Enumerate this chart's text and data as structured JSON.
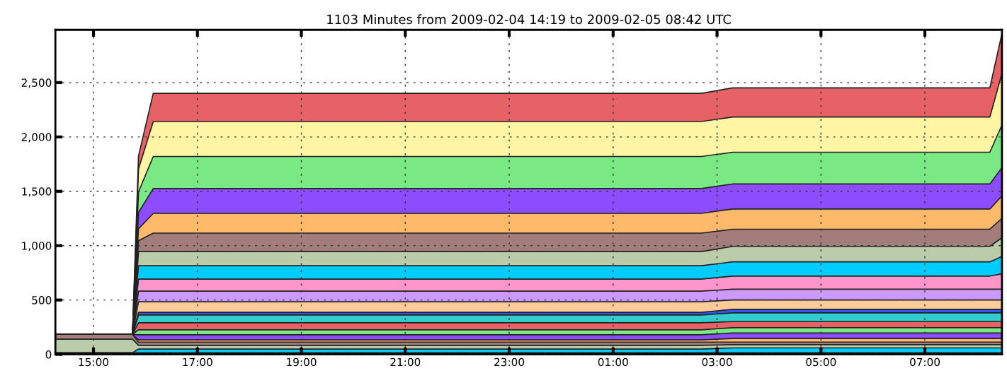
{
  "chart_data": {
    "type": "area",
    "stacked": true,
    "title": "1103 Minutes from 2009-02-04 14:19 to 2009-02-05 08:42 UTC",
    "x": [
      "2009-02-04T14:16",
      "2009-02-04T15:45",
      "2009-02-04T15:52",
      "2009-02-04T16:09",
      "2009-02-05T02:42",
      "2009-02-05T03:18",
      "2009-02-05T08:15",
      "2009-02-05T08:29"
    ],
    "series": [
      {
        "color": "#333355",
        "values": [
          14,
          14,
          14,
          14,
          14,
          14,
          14,
          14
        ]
      },
      {
        "color": "#00ccff",
        "values": [
          0,
          0,
          35,
          35,
          35,
          45,
          45,
          45
        ]
      },
      {
        "color": "#bbccaa",
        "values": [
          126,
          126,
          34,
          34,
          34,
          30,
          30,
          30
        ]
      },
      {
        "color": "#a37c7c",
        "values": [
          44,
          44,
          30,
          30,
          30,
          24,
          24,
          24
        ]
      },
      {
        "color": "#ffb96b",
        "values": [
          0,
          0,
          20,
          20,
          20,
          33,
          33,
          33
        ]
      },
      {
        "color": "#8d4dff",
        "values": [
          0,
          0,
          47,
          47,
          47,
          50,
          50,
          50
        ]
      },
      {
        "color": "#7ae883",
        "values": [
          0,
          0,
          46,
          46,
          46,
          49,
          49,
          49
        ]
      },
      {
        "color": "#e66266",
        "values": [
          0,
          0,
          65,
          65,
          65,
          56,
          56,
          56
        ]
      },
      {
        "color": "#33cccc",
        "values": [
          0,
          0,
          71,
          71,
          71,
          81,
          81,
          81
        ]
      },
      {
        "color": "#3355ff",
        "values": [
          0,
          0,
          24,
          24,
          24,
          32,
          32,
          32
        ]
      },
      {
        "color": "#ffcc99",
        "values": [
          0,
          0,
          98,
          98,
          98,
          86,
          86,
          86
        ]
      },
      {
        "color": "#cc99ff",
        "values": [
          0,
          0,
          97,
          97,
          97,
          99,
          99,
          99
        ]
      },
      {
        "color": "#ff96cb",
        "values": [
          0,
          0,
          111,
          111,
          111,
          121,
          121,
          141
        ]
      },
      {
        "color": "#00ccff",
        "values": [
          0,
          0,
          123,
          123,
          123,
          131,
          131,
          161
        ]
      },
      {
        "color": "#bbccaa",
        "values": [
          0,
          0,
          130,
          130,
          130,
          142,
          142,
          172
        ]
      },
      {
        "color": "#a37c7c",
        "values": [
          0,
          0,
          100,
          170,
          170,
          158,
          158,
          178
        ]
      },
      {
        "color": "#ffb96b",
        "values": [
          0,
          0,
          110,
          182,
          182,
          186,
          186,
          206
        ]
      },
      {
        "color": "#8d4dff",
        "values": [
          0,
          0,
          150,
          228,
          228,
          230,
          230,
          260
        ]
      },
      {
        "color": "#7ae883",
        "values": [
          0,
          0,
          190,
          295,
          295,
          292,
          292,
          392
        ]
      },
      {
        "color": "#fff5a5",
        "values": [
          0,
          0,
          210,
          322,
          322,
          324,
          324,
          474
        ]
      },
      {
        "color": "#e66266",
        "values": [
          0,
          0,
          120,
          259,
          259,
          268,
          268,
          368
        ]
      }
    ],
    "xlim": [
      "2009-02-04T14:16",
      "2009-02-05T08:29"
    ],
    "xticks": [
      {
        "value": "2009-02-04T15:00",
        "label": "15:00"
      },
      {
        "value": "2009-02-04T17:00",
        "label": "17:00"
      },
      {
        "value": "2009-02-04T19:00",
        "label": "19:00"
      },
      {
        "value": "2009-02-04T21:00",
        "label": "21:00"
      },
      {
        "value": "2009-02-04T23:00",
        "label": "23:00"
      },
      {
        "value": "2009-02-05T01:00",
        "label": "01:00"
      },
      {
        "value": "2009-02-05T03:00",
        "label": "03:00"
      },
      {
        "value": "2009-02-05T05:00",
        "label": "05:00"
      },
      {
        "value": "2009-02-05T07:00",
        "label": "07:00"
      }
    ],
    "ylim": [
      0,
      2985
    ],
    "yticks": [
      {
        "value": 0,
        "label": "0"
      },
      {
        "value": 500,
        "label": "500"
      },
      {
        "value": 1000,
        "label": "1,000"
      },
      {
        "value": 1500,
        "label": "1,500"
      },
      {
        "value": 2000,
        "label": "2,000"
      },
      {
        "value": 2500,
        "label": "2,500"
      }
    ],
    "grid": true
  }
}
